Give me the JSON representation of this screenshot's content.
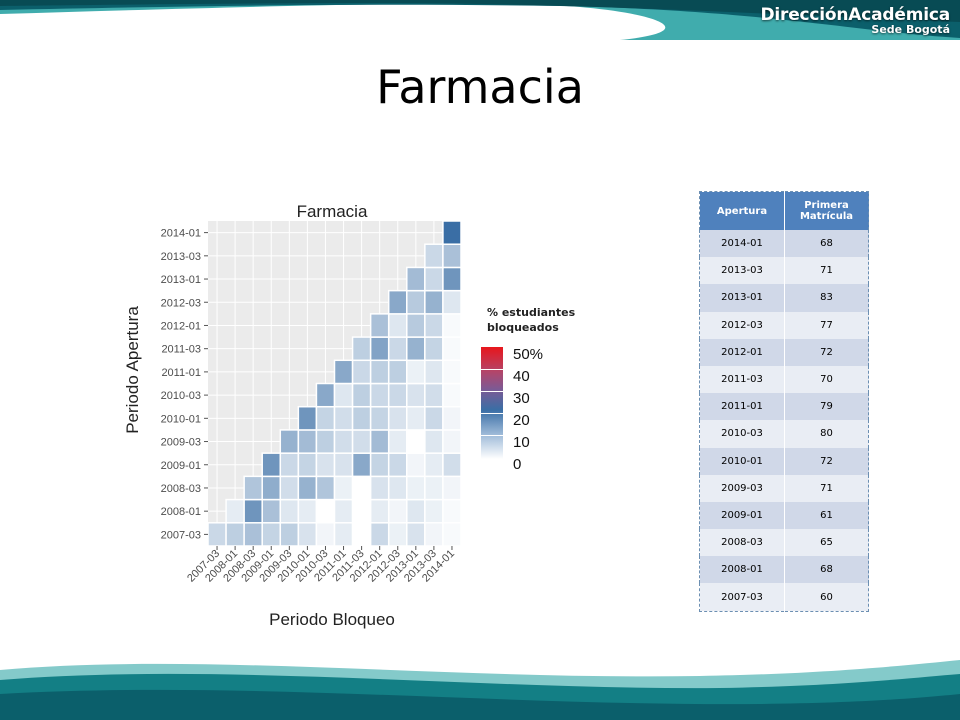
{
  "header": {
    "brand": "DirecciónAcadémica",
    "brand_sub": "Sede Bogotá"
  },
  "slide": {
    "title": "Farmacia"
  },
  "colors": {
    "band_dark": "#0b5f6b",
    "band_mid": "#1f9e9f",
    "table_header": "#4f81bd",
    "row_dark": "#d0d8e8",
    "row_light": "#e9edf4",
    "heat_low": "#ffffff",
    "heat_mid": "#3a6ea5",
    "heat_high": "#e8161c"
  },
  "legend": {
    "title_line1": "% estudiantes",
    "title_line2": "bloqueados",
    "labels": [
      "50%",
      "40",
      "30",
      "20",
      "10",
      "0"
    ]
  },
  "table": {
    "headers": [
      "Apertura",
      "Primera Matrícula"
    ],
    "rows": [
      [
        "2014-01",
        "68"
      ],
      [
        "2013-03",
        "71"
      ],
      [
        "2013-01",
        "83"
      ],
      [
        "2012-03",
        "77"
      ],
      [
        "2012-01",
        "72"
      ],
      [
        "2011-03",
        "70"
      ],
      [
        "2011-01",
        "79"
      ],
      [
        "2010-03",
        "80"
      ],
      [
        "2010-01",
        "72"
      ],
      [
        "2009-03",
        "71"
      ],
      [
        "2009-01",
        "61"
      ],
      [
        "2008-03",
        "65"
      ],
      [
        "2008-01",
        "68"
      ],
      [
        "2007-03",
        "60"
      ]
    ]
  },
  "chart_data": {
    "type": "heatmap",
    "title": "Farmacia",
    "xlabel": "Periodo Bloqueo",
    "ylabel": "Periodo Apertura",
    "x": [
      "2007-03",
      "2008-01",
      "2008-03",
      "2009-01",
      "2009-03",
      "2010-01",
      "2010-03",
      "2011-01",
      "2011-03",
      "2012-01",
      "2012-03",
      "2013-01",
      "2013-03",
      "2014-01"
    ],
    "y": [
      "2007-03",
      "2008-01",
      "2008-03",
      "2009-01",
      "2009-03",
      "2010-01",
      "2010-03",
      "2011-01",
      "2011-03",
      "2012-01",
      "2012-03",
      "2013-01",
      "2013-03",
      "2014-01"
    ],
    "value_range": [
      0,
      50
    ],
    "values": [
      [
        8,
        10,
        13,
        9,
        10,
        6,
        2,
        4,
        0,
        8,
        3,
        6,
        2,
        1
      ],
      [
        null,
        4,
        22,
        13,
        5,
        4,
        0,
        4,
        0,
        4,
        2,
        5,
        3,
        1
      ],
      [
        null,
        null,
        12,
        17,
        7,
        16,
        12,
        3,
        0,
        6,
        5,
        3,
        3,
        2
      ],
      [
        null,
        null,
        null,
        22,
        8,
        9,
        6,
        6,
        18,
        9,
        8,
        2,
        4,
        7
      ],
      [
        null,
        null,
        null,
        null,
        16,
        14,
        10,
        7,
        7,
        14,
        4,
        0,
        5,
        2
      ],
      [
        null,
        null,
        null,
        null,
        null,
        22,
        9,
        7,
        10,
        9,
        6,
        4,
        8,
        2
      ],
      [
        null,
        null,
        null,
        null,
        null,
        null,
        18,
        5,
        10,
        8,
        8,
        6,
        7,
        1
      ],
      [
        null,
        null,
        null,
        null,
        null,
        null,
        null,
        18,
        8,
        10,
        10,
        3,
        5,
        1
      ],
      [
        null,
        null,
        null,
        null,
        null,
        null,
        null,
        null,
        10,
        19,
        8,
        16,
        9,
        1
      ],
      [
        null,
        null,
        null,
        null,
        null,
        null,
        null,
        null,
        null,
        13,
        5,
        11,
        8,
        1
      ],
      [
        null,
        null,
        null,
        null,
        null,
        null,
        null,
        null,
        null,
        null,
        18,
        11,
        16,
        5
      ],
      [
        null,
        null,
        null,
        null,
        null,
        null,
        null,
        null,
        null,
        null,
        null,
        14,
        8,
        22
      ],
      [
        null,
        null,
        null,
        null,
        null,
        null,
        null,
        null,
        null,
        null,
        null,
        null,
        8,
        13
      ],
      [
        null,
        null,
        null,
        null,
        null,
        null,
        null,
        null,
        null,
        null,
        null,
        null,
        null,
        30
      ]
    ],
    "legend_title": "% estudiantes bloqueados",
    "legend_ticks": [
      0,
      10,
      20,
      30,
      40,
      50
    ],
    "legend_position": "right",
    "grid": true
  }
}
